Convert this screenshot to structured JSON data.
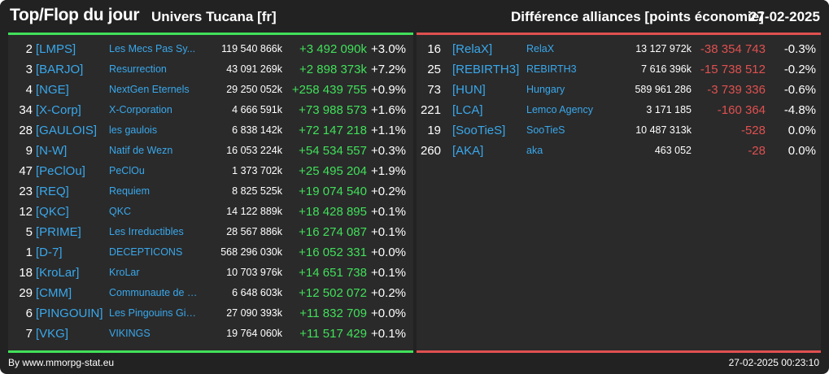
{
  "header": {
    "title": "Top/Flop du jour",
    "universe": "Univers Tucana [fr]",
    "subtitle": "Différence alliances [points économie]",
    "date": "27-02-2025"
  },
  "colors": {
    "positive": "#41e05a",
    "negative": "#e05050",
    "link": "#39a8ec",
    "background": "#222222"
  },
  "top": [
    {
      "rank": "2",
      "tag": "[LMPS]",
      "name": "Les Mecs Pas Sy...",
      "points": "119 540 866k",
      "diff": "+3 492 090k",
      "pct": "+3.0%"
    },
    {
      "rank": "3",
      "tag": "[BARJO]",
      "name": "Resurrection",
      "points": "43 091 269k",
      "diff": "+2 898 373k",
      "pct": "+7.2%"
    },
    {
      "rank": "4",
      "tag": "[NGE]",
      "name": "NextGen Eternels",
      "points": "29 250 052k",
      "diff": "+258 439 755",
      "pct": "+0.9%"
    },
    {
      "rank": "34",
      "tag": "[X-Corp]",
      "name": "X-Corporation",
      "points": "4 666 591k",
      "diff": "+73 988 573",
      "pct": "+1.6%"
    },
    {
      "rank": "28",
      "tag": "[GAULOIS]",
      "name": "les gaulois",
      "points": "6 838 142k",
      "diff": "+72 147 218",
      "pct": "+1.1%"
    },
    {
      "rank": "9",
      "tag": "[N-W]",
      "name": "Natif de Wezn",
      "points": "16 053 224k",
      "diff": "+54 534 557",
      "pct": "+0.3%"
    },
    {
      "rank": "47",
      "tag": "[PeClOu]",
      "name": "PeClOu",
      "points": "1 373 702k",
      "diff": "+25 495 204",
      "pct": "+1.9%"
    },
    {
      "rank": "23",
      "tag": "[REQ]",
      "name": "Requiem",
      "points": "8 825 525k",
      "diff": "+19 074 540",
      "pct": "+0.2%"
    },
    {
      "rank": "12",
      "tag": "[QKC]",
      "name": "QKC",
      "points": "14 122 889k",
      "diff": "+18 428 895",
      "pct": "+0.1%"
    },
    {
      "rank": "5",
      "tag": "[PRIME]",
      "name": "Les Irreductibles",
      "points": "28 567 886k",
      "diff": "+16 274 087",
      "pct": "+0.1%"
    },
    {
      "rank": "1",
      "tag": "[D-7]",
      "name": "DECEPTICONS",
      "points": "568 296 030k",
      "diff": "+16 052 331",
      "pct": "+0.0%"
    },
    {
      "rank": "18",
      "tag": "[KroLar]",
      "name": "KroLar",
      "points": "10 703 976k",
      "diff": "+14 651 738",
      "pct": "+0.1%"
    },
    {
      "rank": "29",
      "tag": "[CMM]",
      "name": "Communaute de m...",
      "points": "6 648 603k",
      "diff": "+12 502 072",
      "pct": "+0.2%"
    },
    {
      "rank": "6",
      "tag": "[PINGOUIN]",
      "name": "Les Pingouins Givre...",
      "points": "27 090 393k",
      "diff": "+11 832 709",
      "pct": "+0.0%"
    },
    {
      "rank": "7",
      "tag": "[VKG]",
      "name": "VIKINGS",
      "points": "19 764 060k",
      "diff": "+11 517 429",
      "pct": "+0.1%"
    }
  ],
  "flop": [
    {
      "rank": "16",
      "tag": "[RelaX]",
      "name": "RelaX",
      "points": "13 127 972k",
      "diff": "-38 354 743",
      "pct": "-0.3%"
    },
    {
      "rank": "25",
      "tag": "[REBIRTH3]",
      "name": "REBIRTH3",
      "points": "7 616 396k",
      "diff": "-15 738 512",
      "pct": "-0.2%"
    },
    {
      "rank": "73",
      "tag": "[HUN]",
      "name": "Hungary",
      "points": "589 961 286",
      "diff": "-3 739 336",
      "pct": "-0.6%"
    },
    {
      "rank": "221",
      "tag": "[LCA]",
      "name": "Lemco Agency",
      "points": "3 171 185",
      "diff": "-160 364",
      "pct": "-4.8%"
    },
    {
      "rank": "19",
      "tag": "[SooTieS]",
      "name": "SooTieS",
      "points": "10 487 313k",
      "diff": "-528",
      "pct": "0.0%"
    },
    {
      "rank": "260",
      "tag": "[AKA]",
      "name": "aka",
      "points": "463 052",
      "diff": "-28",
      "pct": "0.0%"
    }
  ],
  "footer": {
    "credit": "By www.mmorpg-stat.eu",
    "timestamp": "27-02-2025 00:23:10"
  }
}
